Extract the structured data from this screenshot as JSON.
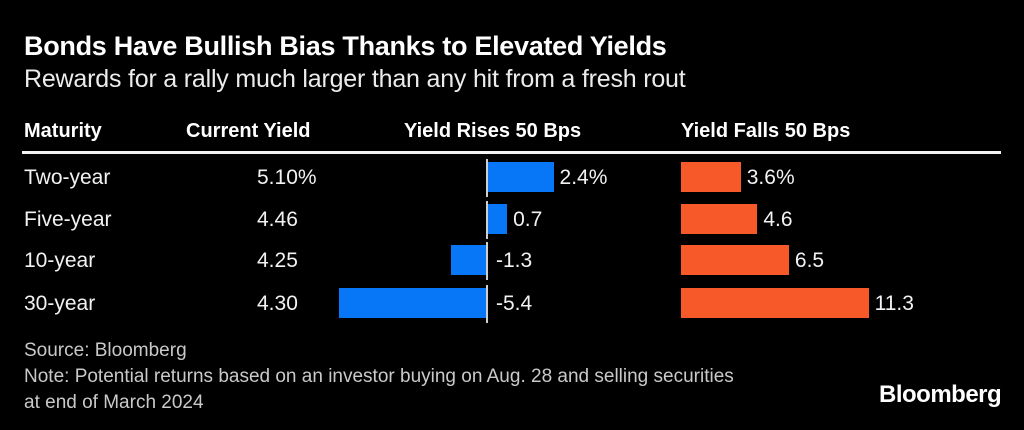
{
  "header": {
    "title": "Bonds Have Bullish Bias Thanks to Elevated Yields",
    "subtitle": "Rewards for a rally much larger than any hit from a fresh rout"
  },
  "table": {
    "columns": [
      "Maturity",
      "Current Yield",
      "Yield Rises 50 Bps",
      "Yield Falls 50 Bps"
    ],
    "rows": [
      {
        "maturity": "Two-year",
        "current_yield": "5.10%"
      },
      {
        "maturity": "Five-year",
        "current_yield": "4.46"
      },
      {
        "maturity": "10-year",
        "current_yield": "4.25"
      },
      {
        "maturity": "30-year",
        "current_yield": "4.30"
      }
    ]
  },
  "chart_data": {
    "type": "bar",
    "orientation": "horizontal",
    "title": "Bonds Have Bullish Bias Thanks to Elevated Yields",
    "subtitle": "Rewards for a rally much larger than any hit from a fresh rout",
    "categories": [
      "Two-year",
      "Five-year",
      "10-year",
      "30-year"
    ],
    "current_yields": [
      "5.10%",
      "4.46",
      "4.25",
      "4.30"
    ],
    "series": [
      {
        "name": "Yield Rises 50 Bps",
        "color": "#0877f7",
        "values": [
          2.4,
          0.7,
          -1.3,
          -5.4
        ],
        "labels": [
          "2.4%",
          "0.7",
          "-1.3",
          "-5.4"
        ],
        "unit": "percent total return"
      },
      {
        "name": "Yield Falls 50 Bps",
        "color": "#f75a28",
        "values": [
          3.6,
          4.6,
          6.5,
          11.3
        ],
        "labels": [
          "3.6%",
          "4.6",
          "6.5",
          "11.3"
        ],
        "unit": "percent total return"
      }
    ],
    "grid": false,
    "legend_position": "column-headers",
    "zero_axis": "shown for rises series"
  },
  "footer": {
    "source": "Source: Bloomberg",
    "note_line1": "Note: Potential returns based on an investor buying on Aug. 28 and selling securities",
    "note_line2": "at end of March 2024",
    "logo": "Bloomberg"
  },
  "colors": {
    "background": "#000000",
    "rise_bar": "#0877f7",
    "fall_bar": "#f75a28",
    "title_text": "#ffffff",
    "body_text": "#f2f2f2",
    "muted_text": "#c9c9c9",
    "rule": "#f2f2f2",
    "zero_axis": "#cfcfcf"
  }
}
